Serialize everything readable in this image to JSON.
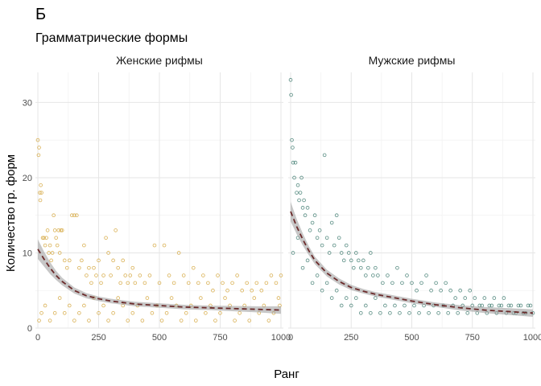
{
  "chart_data": {
    "type": "scatter",
    "title": "Б",
    "subtitle": "Грамматрические формы",
    "xlabel": "Ранг",
    "ylabel": "Количество гр. форм",
    "xlim": [
      -10,
      1010
    ],
    "ylim": [
      0,
      34
    ],
    "x_ticks": [
      0,
      250,
      500,
      750,
      1000
    ],
    "y_ticks": [
      0,
      10,
      20,
      30
    ],
    "grid": true,
    "legend": "none",
    "panels": [
      {
        "name": "Женские рифмы",
        "color": "#d4a53a",
        "trend_color": "#6b2a2a",
        "band_color": "#999999",
        "trend": {
          "x": [
            0,
            25,
            50,
            75,
            100,
            150,
            200,
            250,
            300,
            350,
            400,
            500,
            600,
            700,
            800,
            900,
            1000
          ],
          "y": [
            10.5,
            9.2,
            8.0,
            7.0,
            6.2,
            5.0,
            4.3,
            3.9,
            3.6,
            3.4,
            3.2,
            3.0,
            2.8,
            2.7,
            2.6,
            2.5,
            2.4
          ],
          "band_halfwidth": [
            1.3,
            1.0,
            0.8,
            0.6,
            0.5,
            0.4,
            0.35,
            0.3,
            0.3,
            0.3,
            0.3,
            0.3,
            0.3,
            0.3,
            0.35,
            0.4,
            0.5
          ]
        },
        "points": [
          [
            0,
            25
          ],
          [
            3,
            23
          ],
          [
            5,
            24
          ],
          [
            8,
            18
          ],
          [
            10,
            17
          ],
          [
            12,
            19
          ],
          [
            15,
            18
          ],
          [
            20,
            12
          ],
          [
            25,
            12
          ],
          [
            30,
            11
          ],
          [
            35,
            12
          ],
          [
            40,
            13
          ],
          [
            45,
            10
          ],
          [
            50,
            11
          ],
          [
            55,
            9
          ],
          [
            60,
            10
          ],
          [
            65,
            15
          ],
          [
            70,
            13
          ],
          [
            75,
            12
          ],
          [
            80,
            11
          ],
          [
            85,
            13
          ],
          [
            90,
            10
          ],
          [
            95,
            13
          ],
          [
            100,
            13
          ],
          [
            110,
            9
          ],
          [
            120,
            8
          ],
          [
            130,
            9
          ],
          [
            140,
            15
          ],
          [
            150,
            15
          ],
          [
            160,
            15
          ],
          [
            170,
            8
          ],
          [
            180,
            9
          ],
          [
            190,
            11
          ],
          [
            200,
            7
          ],
          [
            210,
            8
          ],
          [
            220,
            6
          ],
          [
            230,
            8
          ],
          [
            240,
            7
          ],
          [
            250,
            9
          ],
          [
            260,
            6
          ],
          [
            270,
            7
          ],
          [
            280,
            12
          ],
          [
            290,
            10
          ],
          [
            300,
            7
          ],
          [
            310,
            9
          ],
          [
            320,
            13
          ],
          [
            330,
            8
          ],
          [
            340,
            6
          ],
          [
            350,
            9
          ],
          [
            360,
            7
          ],
          [
            370,
            6
          ],
          [
            380,
            7
          ],
          [
            390,
            8
          ],
          [
            400,
            6
          ],
          [
            420,
            7
          ],
          [
            440,
            6
          ],
          [
            460,
            7
          ],
          [
            480,
            11
          ],
          [
            500,
            6
          ],
          [
            520,
            11
          ],
          [
            540,
            7
          ],
          [
            560,
            6
          ],
          [
            580,
            10
          ],
          [
            600,
            7
          ],
          [
            620,
            6
          ],
          [
            640,
            8
          ],
          [
            660,
            6
          ],
          [
            680,
            7
          ],
          [
            700,
            6
          ],
          [
            720,
            5
          ],
          [
            740,
            7
          ],
          [
            760,
            6
          ],
          [
            780,
            5
          ],
          [
            800,
            6
          ],
          [
            820,
            7
          ],
          [
            840,
            5
          ],
          [
            860,
            6
          ],
          [
            880,
            5
          ],
          [
            900,
            6
          ],
          [
            920,
            5
          ],
          [
            940,
            6
          ],
          [
            960,
            7
          ],
          [
            980,
            6
          ],
          [
            1000,
            7
          ],
          [
            5,
            1
          ],
          [
            15,
            2
          ],
          [
            30,
            3
          ],
          [
            50,
            1
          ],
          [
            70,
            2
          ],
          [
            90,
            4
          ],
          [
            110,
            2
          ],
          [
            130,
            3
          ],
          [
            150,
            1
          ],
          [
            170,
            2
          ],
          [
            190,
            3
          ],
          [
            210,
            1
          ],
          [
            230,
            4
          ],
          [
            250,
            2
          ],
          [
            270,
            3
          ],
          [
            290,
            1
          ],
          [
            310,
            2
          ],
          [
            330,
            4
          ],
          [
            350,
            3
          ],
          [
            370,
            1
          ],
          [
            390,
            2
          ],
          [
            410,
            3
          ],
          [
            430,
            1
          ],
          [
            450,
            4
          ],
          [
            470,
            2
          ],
          [
            490,
            3
          ],
          [
            510,
            1
          ],
          [
            530,
            2
          ],
          [
            550,
            4
          ],
          [
            570,
            3
          ],
          [
            590,
            1
          ],
          [
            610,
            2
          ],
          [
            630,
            3
          ],
          [
            650,
            1
          ],
          [
            670,
            4
          ],
          [
            690,
            2
          ],
          [
            710,
            3
          ],
          [
            730,
            1
          ],
          [
            750,
            2
          ],
          [
            770,
            4
          ],
          [
            790,
            3
          ],
          [
            810,
            1
          ],
          [
            830,
            2
          ],
          [
            850,
            3
          ],
          [
            870,
            1
          ],
          [
            890,
            4
          ],
          [
            910,
            2
          ],
          [
            930,
            3
          ],
          [
            950,
            1
          ],
          [
            970,
            2
          ],
          [
            990,
            4
          ],
          [
            995,
            3
          ]
        ]
      },
      {
        "name": "Мужские рифмы",
        "color": "#3d7a6e",
        "trend_color": "#6b2a2a",
        "band_color": "#999999",
        "trend": {
          "x": [
            0,
            25,
            50,
            75,
            100,
            150,
            200,
            250,
            300,
            350,
            400,
            500,
            600,
            700,
            800,
            900,
            1000
          ],
          "y": [
            15.5,
            13.5,
            11.8,
            10.3,
            9.0,
            7.3,
            6.2,
            5.4,
            4.9,
            4.5,
            4.2,
            3.6,
            3.1,
            2.7,
            2.4,
            2.2,
            2.0
          ],
          "band_halfwidth": [
            1.3,
            1.0,
            0.8,
            0.6,
            0.5,
            0.45,
            0.4,
            0.35,
            0.3,
            0.3,
            0.3,
            0.3,
            0.3,
            0.35,
            0.4,
            0.45,
            0.5
          ]
        },
        "points": [
          [
            0,
            33
          ],
          [
            2,
            31
          ],
          [
            5,
            25
          ],
          [
            8,
            24
          ],
          [
            10,
            22
          ],
          [
            15,
            20
          ],
          [
            20,
            22
          ],
          [
            25,
            18
          ],
          [
            30,
            19
          ],
          [
            35,
            17
          ],
          [
            40,
            18
          ],
          [
            45,
            20
          ],
          [
            50,
            16
          ],
          [
            55,
            17
          ],
          [
            60,
            15
          ],
          [
            70,
            16
          ],
          [
            80,
            13
          ],
          [
            90,
            14
          ],
          [
            100,
            15
          ],
          [
            110,
            12
          ],
          [
            120,
            13
          ],
          [
            130,
            11
          ],
          [
            140,
            23
          ],
          [
            150,
            12
          ],
          [
            160,
            10
          ],
          [
            170,
            14
          ],
          [
            180,
            11
          ],
          [
            190,
            15
          ],
          [
            200,
            12
          ],
          [
            210,
            10
          ],
          [
            220,
            9
          ],
          [
            230,
            11
          ],
          [
            240,
            10
          ],
          [
            250,
            9
          ],
          [
            260,
            8
          ],
          [
            270,
            10
          ],
          [
            280,
            9
          ],
          [
            290,
            8
          ],
          [
            300,
            9
          ],
          [
            310,
            7
          ],
          [
            320,
            8
          ],
          [
            330,
            10
          ],
          [
            340,
            7
          ],
          [
            350,
            8
          ],
          [
            360,
            7
          ],
          [
            380,
            6
          ],
          [
            400,
            7
          ],
          [
            420,
            6
          ],
          [
            440,
            8
          ],
          [
            460,
            6
          ],
          [
            480,
            7
          ],
          [
            500,
            6
          ],
          [
            520,
            5
          ],
          [
            540,
            6
          ],
          [
            560,
            7
          ],
          [
            580,
            5
          ],
          [
            600,
            6
          ],
          [
            620,
            5
          ],
          [
            640,
            6
          ],
          [
            660,
            5
          ],
          [
            680,
            4
          ],
          [
            700,
            5
          ],
          [
            720,
            4
          ],
          [
            740,
            5
          ],
          [
            760,
            4
          ],
          [
            780,
            3
          ],
          [
            800,
            4
          ],
          [
            820,
            3
          ],
          [
            840,
            4
          ],
          [
            860,
            3
          ],
          [
            880,
            4
          ],
          [
            900,
            3
          ],
          [
            920,
            2
          ],
          [
            940,
            3
          ],
          [
            960,
            2
          ],
          [
            980,
            3
          ],
          [
            1000,
            2
          ],
          [
            10,
            10
          ],
          [
            30,
            12
          ],
          [
            50,
            8
          ],
          [
            70,
            9
          ],
          [
            90,
            6
          ],
          [
            110,
            7
          ],
          [
            130,
            5
          ],
          [
            150,
            6
          ],
          [
            170,
            4
          ],
          [
            190,
            5
          ],
          [
            210,
            3
          ],
          [
            230,
            4
          ],
          [
            250,
            3
          ],
          [
            270,
            4
          ],
          [
            290,
            2
          ],
          [
            310,
            3
          ],
          [
            330,
            2
          ],
          [
            350,
            4
          ],
          [
            370,
            2
          ],
          [
            390,
            3
          ],
          [
            410,
            2
          ],
          [
            430,
            3
          ],
          [
            450,
            2
          ],
          [
            470,
            3
          ],
          [
            490,
            2
          ],
          [
            510,
            3
          ],
          [
            530,
            2
          ],
          [
            550,
            3
          ],
          [
            570,
            2
          ],
          [
            590,
            3
          ],
          [
            610,
            2
          ],
          [
            630,
            3
          ],
          [
            650,
            2
          ],
          [
            670,
            3
          ],
          [
            690,
            2
          ],
          [
            710,
            3
          ],
          [
            730,
            2
          ],
          [
            750,
            3
          ],
          [
            770,
            2
          ],
          [
            790,
            3
          ],
          [
            810,
            2
          ],
          [
            830,
            3
          ],
          [
            850,
            2
          ],
          [
            870,
            3
          ],
          [
            890,
            2
          ],
          [
            910,
            3
          ],
          [
            930,
            2
          ],
          [
            950,
            3
          ],
          [
            970,
            2
          ],
          [
            990,
            3
          ]
        ]
      }
    ]
  }
}
